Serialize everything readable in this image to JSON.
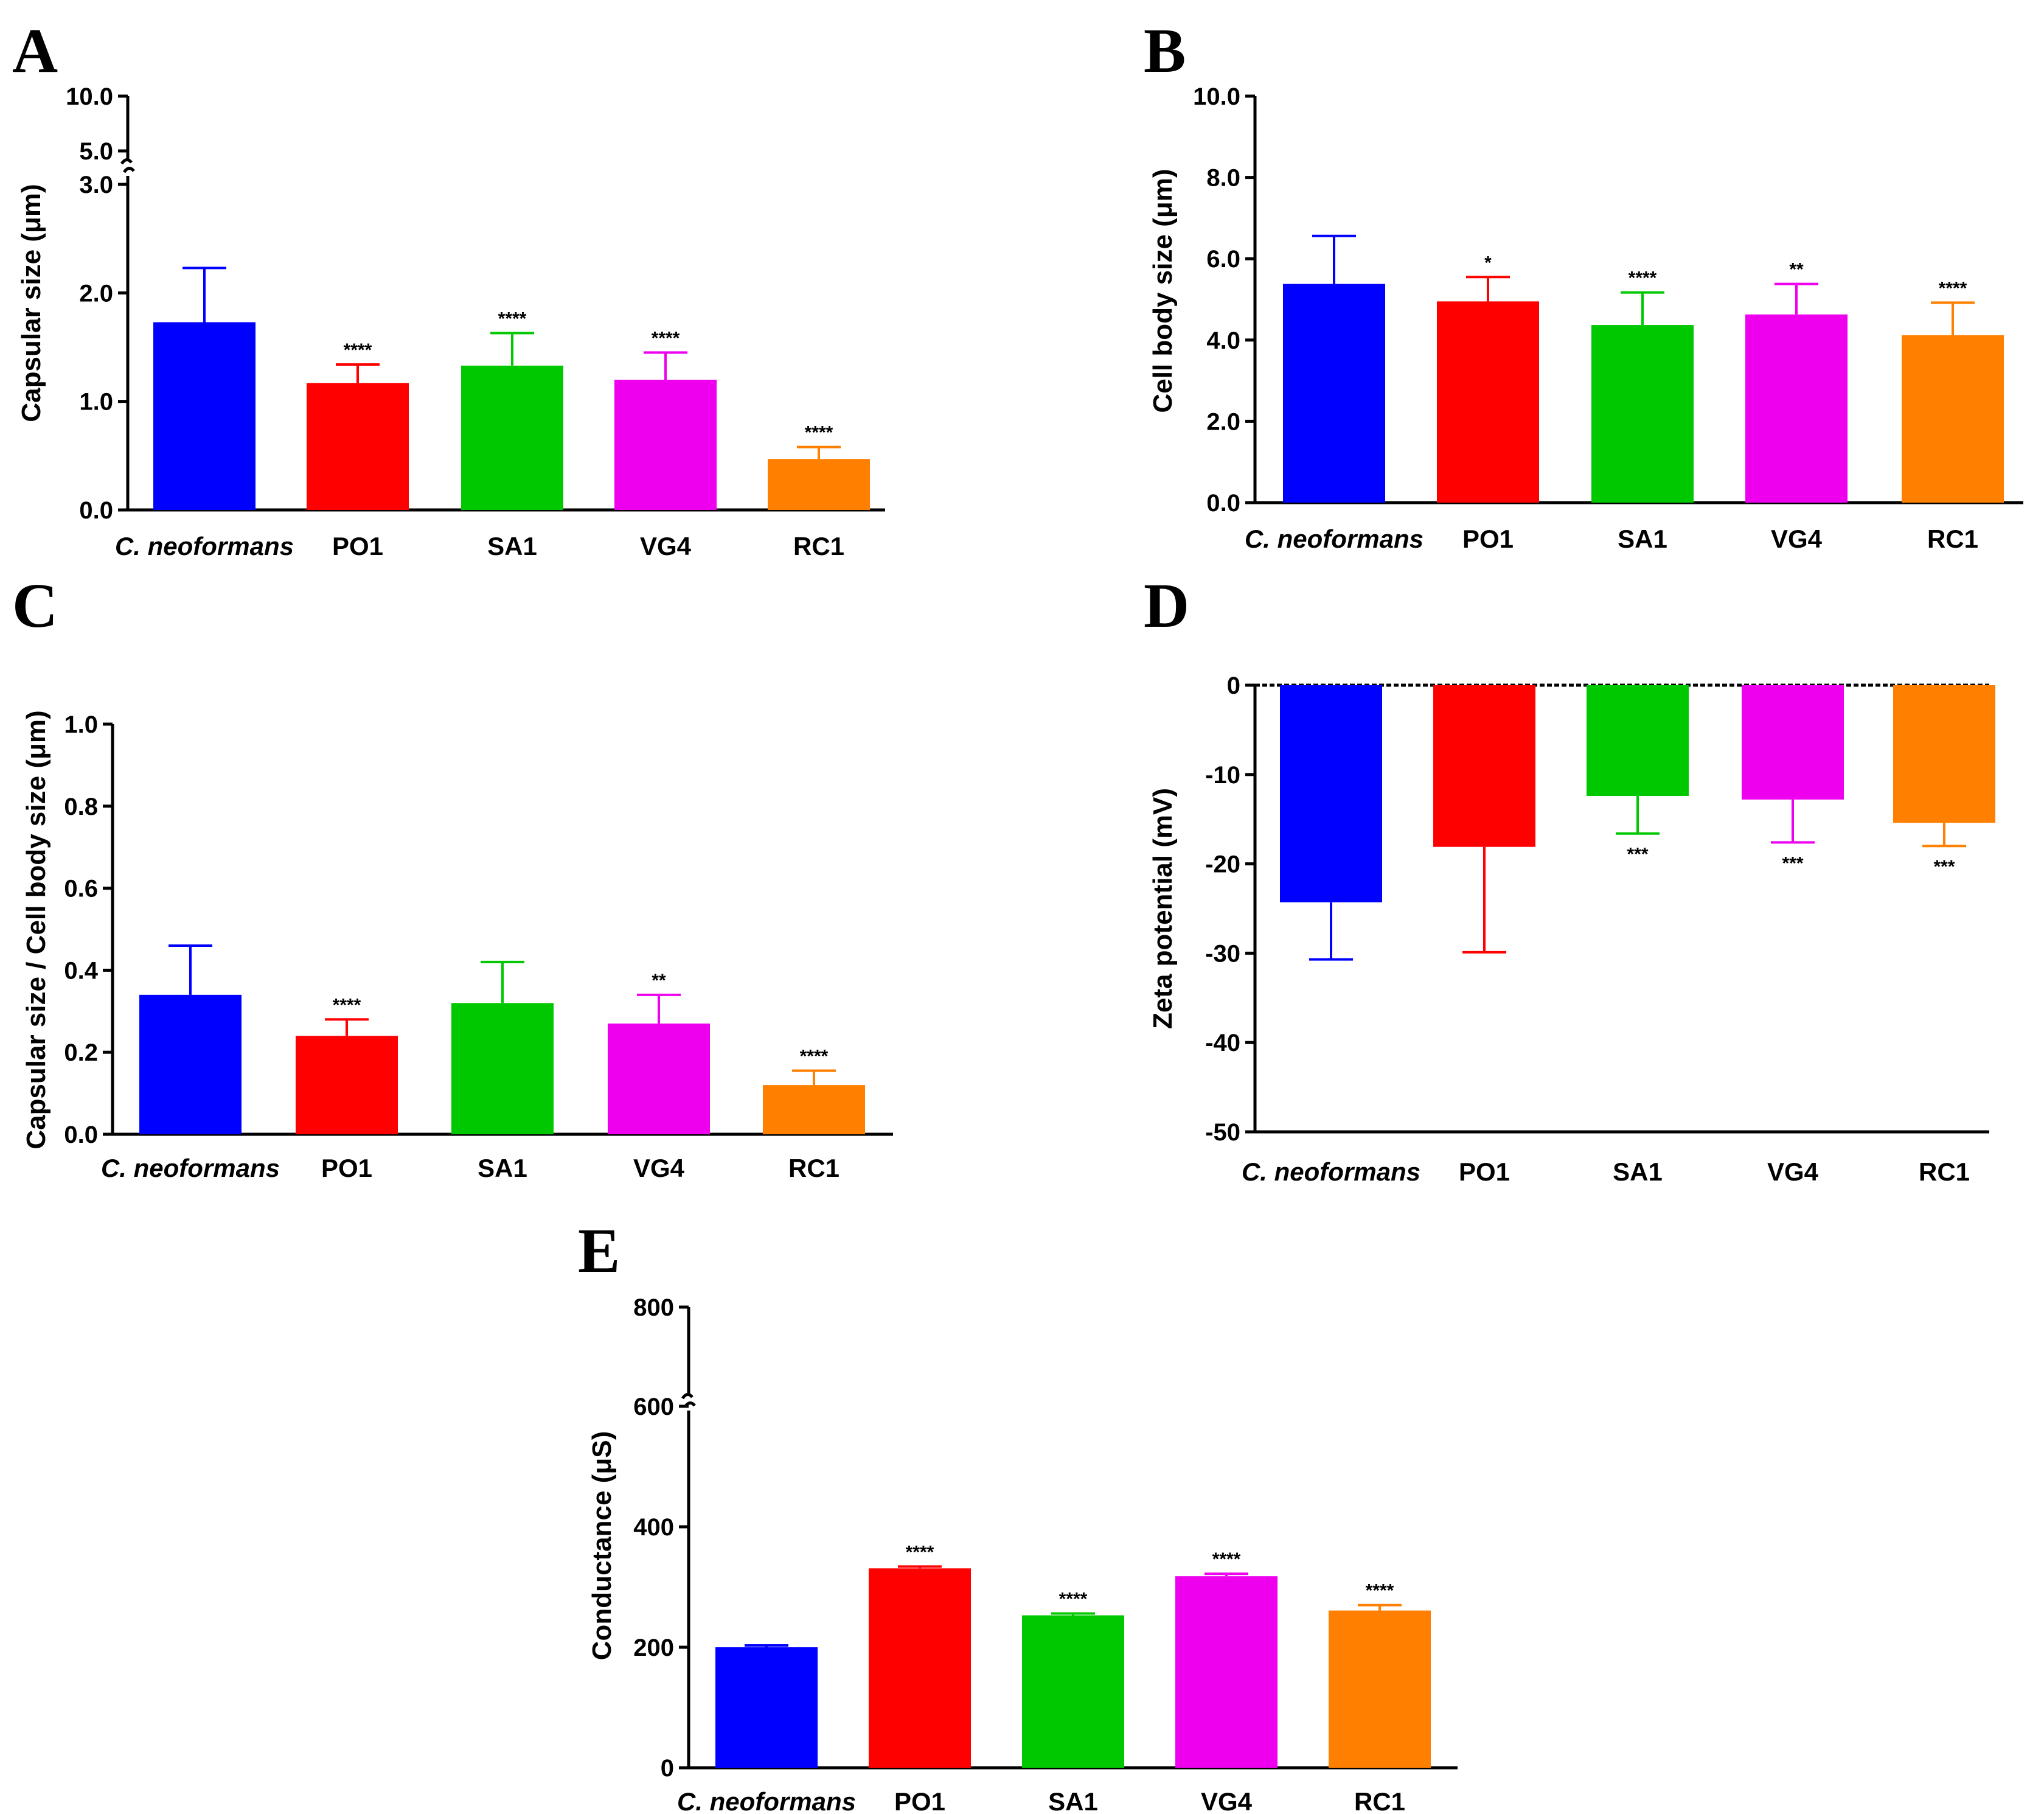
{
  "figure": {
    "colors": {
      "C. neoformans": "#0000ff",
      "PO1": "#ff0000",
      "SA1": "#00c800",
      "VG4": "#ee00ee",
      "RC1": "#ff8000"
    }
  },
  "chart_data": [
    {
      "panel": "A",
      "type": "bar",
      "title": "",
      "xlabel": "",
      "ylabel": "Capsular size (μm)",
      "categories": [
        "C. neoformans",
        "PO1",
        "SA1",
        "VG4",
        "RC1"
      ],
      "values": [
        1.73,
        1.17,
        1.33,
        1.2,
        0.47
      ],
      "errors": [
        0.5,
        0.17,
        0.3,
        0.25,
        0.11
      ],
      "significance": [
        "",
        "****",
        "****",
        "****",
        "****"
      ],
      "ylim": [
        0,
        10
      ],
      "axis_break": [
        3.0,
        5.0
      ],
      "yticks": [
        "0.0",
        "1.0",
        "2.0",
        "3.0",
        "5.0",
        "10.0"
      ],
      "grid": false
    },
    {
      "panel": "B",
      "type": "bar",
      "title": "",
      "xlabel": "",
      "ylabel": "Cell body size (μm)",
      "categories": [
        "C. neoformans",
        "PO1",
        "SA1",
        "VG4",
        "RC1"
      ],
      "values": [
        5.38,
        4.95,
        4.37,
        4.63,
        4.12
      ],
      "errors": [
        1.18,
        0.6,
        0.8,
        0.75,
        0.8
      ],
      "significance": [
        "",
        "*",
        "****",
        "**",
        "****"
      ],
      "ylim": [
        0,
        10
      ],
      "yticks": [
        "0.0",
        "2.0",
        "4.0",
        "6.0",
        "8.0",
        "10.0"
      ],
      "grid": false
    },
    {
      "panel": "C",
      "type": "bar",
      "title": "",
      "xlabel": "",
      "ylabel": "Capsular size / Cell body size (μm)",
      "categories": [
        "C. neoformans",
        "PO1",
        "SA1",
        "VG4",
        "RC1"
      ],
      "values": [
        0.34,
        0.24,
        0.32,
        0.27,
        0.12
      ],
      "errors": [
        0.12,
        0.04,
        0.1,
        0.07,
        0.035
      ],
      "significance": [
        "",
        "****",
        "",
        "**",
        "****"
      ],
      "ylim": [
        0,
        1
      ],
      "yticks": [
        "0.0",
        "0.2",
        "0.4",
        "0.6",
        "0.8",
        "1.0"
      ],
      "grid": false
    },
    {
      "panel": "D",
      "type": "bar",
      "title": "",
      "xlabel": "",
      "ylabel": "Zeta potential (mV)",
      "categories": [
        "C. neoformans",
        "PO1",
        "SA1",
        "VG4",
        "RC1"
      ],
      "values": [
        -24.3,
        -18.1,
        -12.4,
        -12.8,
        -15.4
      ],
      "errors": [
        6.4,
        11.8,
        4.2,
        4.8,
        2.6
      ],
      "significance": [
        "",
        "",
        "***",
        "***",
        "***"
      ],
      "ylim": [
        -50,
        0
      ],
      "yticks": [
        "-50",
        "-40",
        "-30",
        "-20",
        "-10",
        "0"
      ],
      "grid": false
    },
    {
      "panel": "E",
      "type": "bar",
      "title": "",
      "xlabel": "",
      "ylabel": "Conductance (μS)",
      "categories": [
        "C. neoformans",
        "PO1",
        "SA1",
        "VG4",
        "RC1"
      ],
      "values": [
        200,
        331,
        253,
        318,
        261
      ],
      "errors": [
        3,
        3,
        3,
        4,
        9
      ],
      "significance": [
        "",
        "****",
        "****",
        "****",
        "****"
      ],
      "ylim": [
        0,
        800
      ],
      "axis_break": [
        600,
        600
      ],
      "yticks": [
        "0",
        "200",
        "400",
        "600",
        "800"
      ],
      "grid": false
    }
  ]
}
